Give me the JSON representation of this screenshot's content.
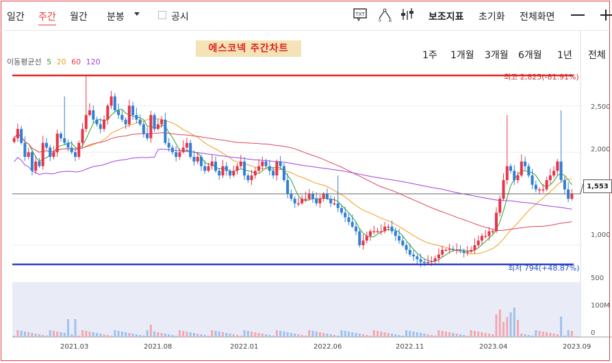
{
  "tabs": {
    "daily": "일간",
    "weekly": "주간",
    "monthly": "월간",
    "minute": "분봉",
    "disclosure": "공시"
  },
  "toolbar": {
    "indicators": "보조지표",
    "reset": "초기화",
    "fullscreen": "전체화면"
  },
  "chart_title": "에스코넥 주간차트",
  "ma_legend": {
    "label": "이동평균선",
    "ma5": "5",
    "ma20": "20",
    "ma60": "60",
    "ma120": "120",
    "colors": {
      "ma5": "#2ca02c",
      "ma20": "#f29b1a",
      "ma60": "#e0405a",
      "ma120": "#a040e0"
    }
  },
  "ranges": [
    "1주",
    "1개월",
    "3개월",
    "6개월",
    "1년",
    "전체"
  ],
  "annotations": {
    "high": "최고 2,825(-81.91%)",
    "low": "최저 794(+48.87%)",
    "current_price": "1,553"
  },
  "y_axis": {
    "ticks": [
      "2,500",
      "2,000",
      "1,500",
      "1,000"
    ]
  },
  "volume_axis": {
    "ticks": [
      "500",
      "100M",
      "0"
    ]
  },
  "x_axis": {
    "labels": [
      "2021.03",
      "2021.08",
      "2022.01",
      "2022.06",
      "2022.11",
      "2023.04",
      "2023.09"
    ]
  },
  "chart_data": {
    "type": "candlestick",
    "title": "에스코넥 주간차트",
    "ylim": [
      750,
      2900
    ],
    "reference_lines": {
      "high": 2825,
      "low": 794,
      "current": 1553
    },
    "close": [
      2150,
      2250,
      2100,
      1950,
      2000,
      1800,
      1900,
      1850,
      2100,
      2050,
      1950,
      2000,
      2200,
      2150,
      2100,
      2050,
      2000,
      1950,
      2100,
      2250,
      2400,
      2450,
      2350,
      2300,
      2250,
      2350,
      2500,
      2600,
      2450,
      2400,
      2350,
      2300,
      2500,
      2400,
      2350,
      2300,
      2200,
      2150,
      2400,
      2250,
      2300,
      2350,
      2100,
      2050,
      2000,
      1950,
      2000,
      2050,
      2100,
      1950,
      1900,
      1950,
      1850,
      1800,
      1850,
      1900,
      1800,
      1750,
      1850,
      1800,
      1750,
      1800,
      1850,
      1900,
      1750,
      1700,
      1750,
      1800,
      1850,
      1900,
      1850,
      1800,
      1750,
      1900,
      1850,
      1700,
      1550,
      1500,
      1450,
      1450,
      1500,
      1500,
      1550,
      1500,
      1450,
      1500,
      1550,
      1500,
      1450,
      1450,
      1400,
      1350,
      1300,
      1250,
      1200,
      1150,
      1000,
      1050,
      1100,
      1150,
      1150,
      1150,
      1150,
      1200,
      1200,
      1150,
      1100,
      1050,
      1000,
      950,
      900,
      880,
      850,
      820,
      810,
      820,
      830,
      860,
      900,
      950,
      950,
      960,
      950,
      950,
      940,
      920,
      930,
      950,
      1000,
      1050,
      1100,
      1100,
      1150,
      1150,
      1350,
      1500,
      1700,
      1850,
      1800,
      1700,
      1750,
      1900,
      1850,
      1750,
      1650,
      1600,
      1600,
      1600,
      1700,
      1750,
      1800,
      1900,
      1700,
      1600,
      1500,
      1550
    ],
    "volume_scale_max": 500,
    "volume_notes": "volume bars mostly low with spikes around 2021.03 and 2023.04"
  }
}
